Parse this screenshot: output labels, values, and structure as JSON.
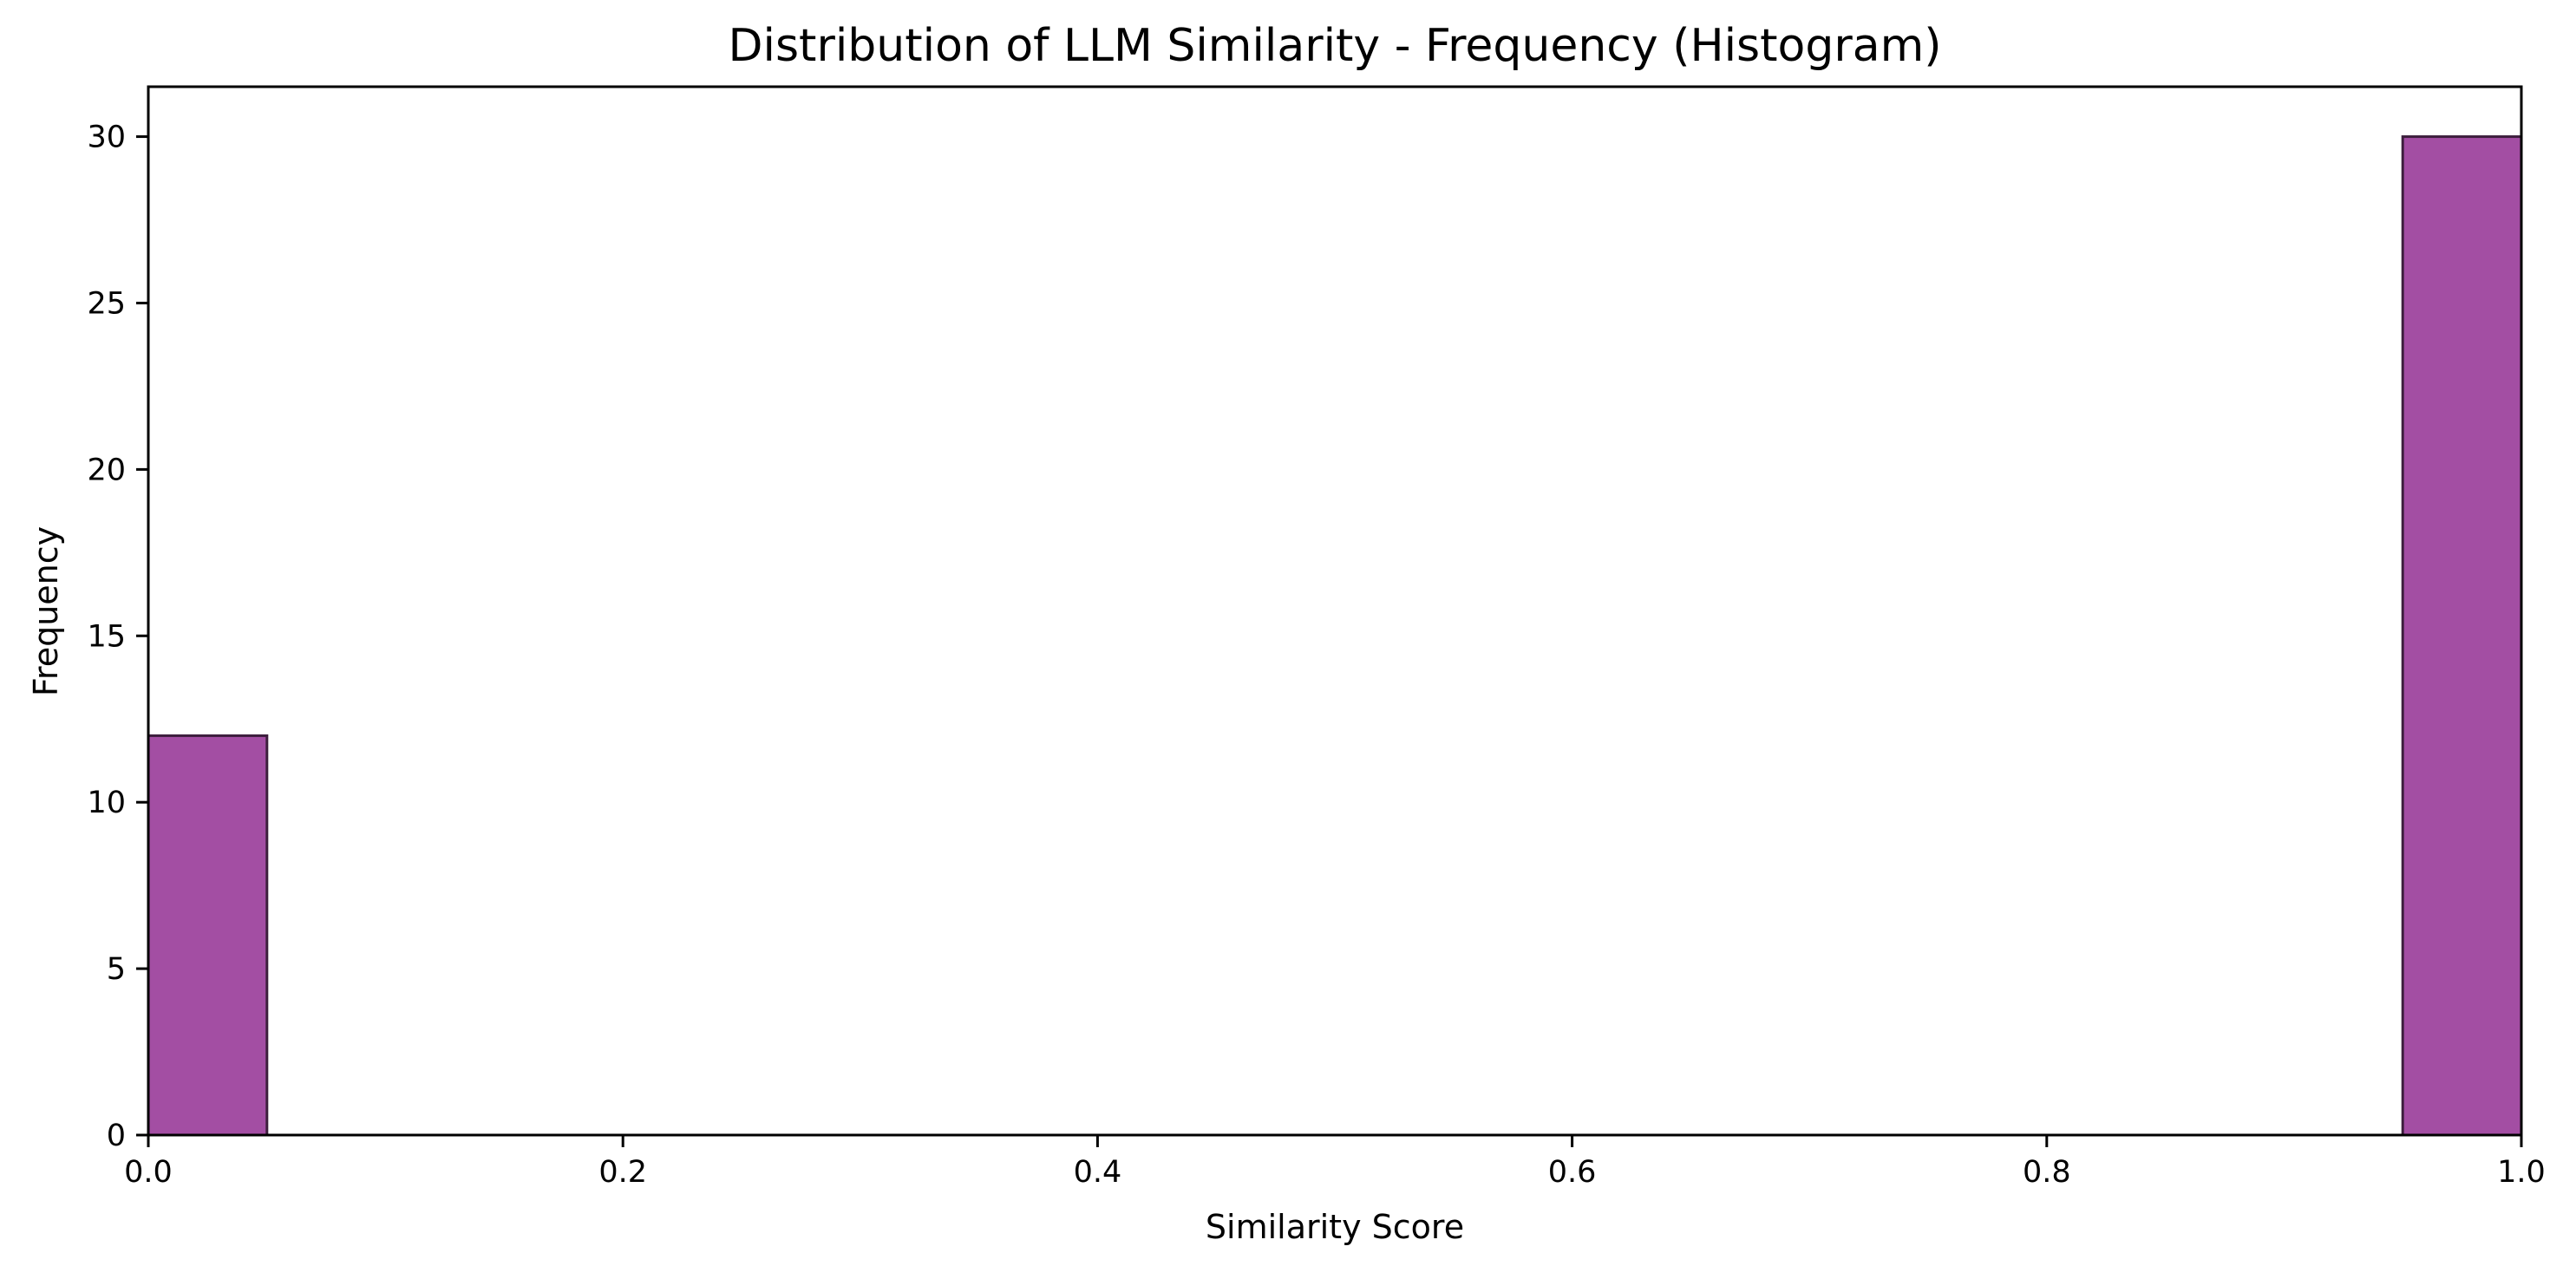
{
  "chart_data": {
    "type": "bar",
    "title": "Distribution of LLM Similarity - Frequency (Histogram)",
    "xlabel": "Similarity Score",
    "ylabel": "Frequency",
    "xlim": [
      0.0,
      1.0
    ],
    "ylim": [
      0,
      31.5
    ],
    "x_ticks": [
      "0.0",
      "0.2",
      "0.4",
      "0.6",
      "0.8",
      "1.0"
    ],
    "y_ticks": [
      "0",
      "5",
      "10",
      "15",
      "20",
      "25",
      "30"
    ],
    "grid": false,
    "legend": "none",
    "bins": [
      {
        "start": 0.0,
        "end": 0.05,
        "value": 12
      },
      {
        "start": 0.95,
        "end": 1.0,
        "value": 30
      }
    ],
    "colors": {
      "bar_fill": "#a34ea3",
      "bar_edge": "#3d1f3d",
      "axis": "#000000"
    }
  }
}
